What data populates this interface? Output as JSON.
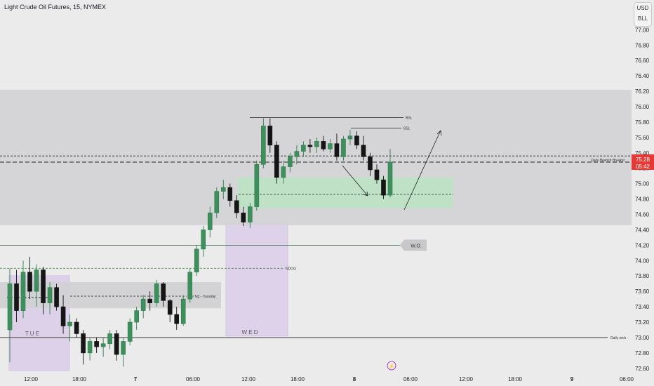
{
  "header": {
    "symbol_title": "Light Crude Oil Futures, 15, NYMEX"
  },
  "price_scale": {
    "currency": "USD",
    "unit": "BLL",
    "ticks": [
      "77.00",
      "76.80",
      "76.60",
      "76.40",
      "76.20",
      "76.00",
      "75.80",
      "75.60",
      "75.40",
      "75.20",
      "75.00",
      "74.80",
      "74.60",
      "74.40",
      "74.20",
      "74.00",
      "73.80",
      "73.60",
      "73.40",
      "73.20",
      "73.00",
      "72.80",
      "72.60"
    ],
    "last_price": "75.28",
    "countdown": "05:42"
  },
  "time_axis": {
    "labels": [
      "12:00",
      "18:00",
      "7",
      "06:00",
      "12:00",
      "18:00",
      "8",
      "06:00",
      "12:00",
      "18:00",
      "9",
      "06:00"
    ]
  },
  "annotations": {
    "bsl_1": "BSL",
    "bsl_2": "BSL",
    "daily_bearish_breaker": "Daily Bearish Breaker",
    "weekly_open": "W.O.",
    "ndog": "NDOG",
    "ssl": "ssl",
    "fvg_label": "1hr fvg - Tuesday",
    "tue": "T U E",
    "wed": "W E D",
    "daily_wick": "Daily wick -"
  },
  "colors": {
    "up_candle": "#2e7d4f",
    "down_candle": "#131313",
    "last_price": "#e53935",
    "zone_gray": "#d3d3d6",
    "zone_green": "#b7e4c0",
    "session_purple": "#d9cde8"
  },
  "chart_data": {
    "type": "candlestick",
    "instrument": "Light Crude Oil Futures",
    "interval": "15",
    "exchange": "NYMEX",
    "ylim": [
      72.58,
      77.04
    ],
    "levels": {
      "daily_bearish_breaker": 75.28,
      "upper_dashed": 75.36,
      "weekly_open": 74.2,
      "ndog": 73.9,
      "daily_wick": 73.0,
      "bsl_1": 75.86,
      "bsl_2": 75.72,
      "last_price": 75.28
    },
    "ohlc": [
      [
        73.1,
        73.9,
        72.68,
        73.7
      ],
      [
        73.7,
        73.88,
        73.2,
        73.35
      ],
      [
        73.35,
        74.0,
        73.25,
        73.85
      ],
      [
        73.85,
        74.05,
        73.5,
        73.6
      ],
      [
        73.6,
        73.95,
        73.4,
        73.88
      ],
      [
        73.88,
        73.92,
        73.3,
        73.45
      ],
      [
        73.45,
        73.72,
        73.3,
        73.65
      ],
      [
        73.65,
        73.7,
        73.35,
        73.4
      ],
      [
        73.4,
        73.55,
        73.05,
        73.15
      ],
      [
        73.15,
        73.3,
        72.95,
        73.2
      ],
      [
        73.2,
        73.25,
        73.0,
        73.05
      ],
      [
        73.05,
        73.1,
        72.65,
        72.8
      ],
      [
        72.8,
        73.0,
        72.7,
        72.95
      ],
      [
        72.95,
        73.0,
        72.8,
        72.88
      ],
      [
        72.88,
        73.0,
        72.75,
        72.92
      ],
      [
        72.92,
        73.1,
        72.85,
        73.05
      ],
      [
        73.05,
        73.1,
        72.7,
        72.78
      ],
      [
        72.78,
        73.0,
        72.62,
        72.95
      ],
      [
        72.95,
        73.25,
        72.9,
        73.2
      ],
      [
        73.2,
        73.4,
        73.1,
        73.35
      ],
      [
        73.35,
        73.55,
        73.25,
        73.5
      ],
      [
        73.5,
        73.6,
        73.35,
        73.45
      ],
      [
        73.45,
        73.75,
        73.4,
        73.7
      ],
      [
        73.7,
        73.72,
        73.4,
        73.48
      ],
      [
        73.48,
        73.5,
        73.2,
        73.3
      ],
      [
        73.3,
        73.4,
        73.1,
        73.18
      ],
      [
        73.18,
        73.55,
        73.15,
        73.5
      ],
      [
        73.5,
        73.9,
        73.45,
        73.85
      ],
      [
        73.85,
        74.2,
        73.8,
        74.15
      ],
      [
        74.15,
        74.45,
        74.05,
        74.4
      ],
      [
        74.4,
        74.7,
        74.3,
        74.62
      ],
      [
        74.62,
        74.95,
        74.55,
        74.9
      ],
      [
        74.9,
        75.05,
        74.8,
        74.95
      ],
      [
        74.95,
        75.0,
        74.7,
        74.78
      ],
      [
        74.78,
        74.85,
        74.55,
        74.62
      ],
      [
        74.62,
        74.7,
        74.45,
        74.5
      ],
      [
        74.5,
        74.75,
        74.42,
        74.7
      ],
      [
        74.7,
        75.3,
        74.65,
        75.25
      ],
      [
        75.25,
        75.85,
        75.2,
        75.75
      ],
      [
        75.75,
        75.85,
        75.4,
        75.5
      ],
      [
        75.5,
        75.55,
        75.0,
        75.08
      ],
      [
        75.08,
        75.3,
        75.0,
        75.22
      ],
      [
        75.22,
        75.4,
        75.15,
        75.35
      ],
      [
        75.35,
        75.5,
        75.25,
        75.42
      ],
      [
        75.42,
        75.55,
        75.35,
        75.5
      ],
      [
        75.5,
        75.58,
        75.4,
        75.48
      ],
      [
        75.48,
        75.6,
        75.4,
        75.55
      ],
      [
        75.55,
        75.62,
        75.42,
        75.45
      ],
      [
        75.45,
        75.58,
        75.4,
        75.52
      ],
      [
        75.52,
        75.65,
        75.3,
        75.35
      ],
      [
        75.35,
        75.62,
        75.3,
        75.58
      ],
      [
        75.58,
        75.7,
        75.5,
        75.62
      ],
      [
        75.62,
        75.68,
        75.45,
        75.5
      ],
      [
        75.5,
        75.62,
        75.3,
        75.35
      ],
      [
        75.35,
        75.4,
        75.1,
        75.18
      ],
      [
        75.18,
        75.25,
        75.0,
        75.05
      ],
      [
        75.05,
        75.1,
        74.8,
        74.85
      ],
      [
        74.85,
        75.45,
        74.82,
        75.28
      ]
    ]
  }
}
